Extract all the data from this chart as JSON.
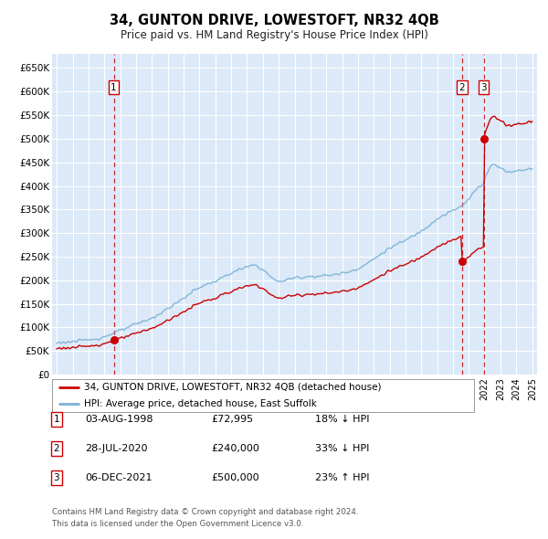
{
  "title": "34, GUNTON DRIVE, LOWESTOFT, NR32 4QB",
  "subtitle": "Price paid vs. HM Land Registry's House Price Index (HPI)",
  "property_label": "34, GUNTON DRIVE, LOWESTOFT, NR32 4QB (detached house)",
  "hpi_label": "HPI: Average price, detached house, East Suffolk",
  "footer1": "Contains HM Land Registry data © Crown copyright and database right 2024.",
  "footer2": "This data is licensed under the Open Government Licence v3.0.",
  "transactions": [
    {
      "num": 1,
      "date_str": "03-AUG-1998",
      "date_x": 1998.59,
      "price": 72995,
      "label": "18% ↓ HPI"
    },
    {
      "num": 2,
      "date_str": "28-JUL-2020",
      "date_x": 2020.57,
      "price": 240000,
      "label": "33% ↓ HPI"
    },
    {
      "num": 3,
      "date_str": "06-DEC-2021",
      "date_x": 2021.93,
      "price": 500000,
      "label": "23% ↑ HPI"
    }
  ],
  "ylim": [
    0,
    680000
  ],
  "yticks": [
    0,
    50000,
    100000,
    150000,
    200000,
    250000,
    300000,
    350000,
    400000,
    450000,
    500000,
    550000,
    600000,
    650000
  ],
  "xlim_start": 1994.7,
  "xlim_end": 2025.3,
  "bg_color": "#dce9f8",
  "grid_color": "#ffffff",
  "property_color": "#cc0000",
  "hpi_color": "#7ab0d4",
  "vline_color": "#cc0000",
  "fig_width": 6.0,
  "fig_height": 5.9,
  "dpi": 100
}
